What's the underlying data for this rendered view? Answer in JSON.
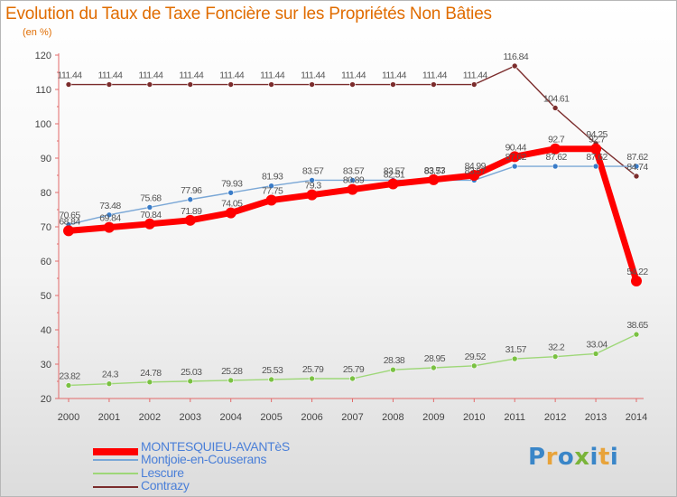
{
  "header": {
    "title": "Evolution du Taux de Taxe Foncière sur les Propriétés Non Bâties",
    "unit": "(en %)"
  },
  "logo": {
    "text": "Proxiti",
    "colors": [
      "#3a86c8",
      "#e8a33a",
      "#7ab43a"
    ]
  },
  "chart_data": {
    "type": "line",
    "title": "Evolution du Taux de Taxe Foncière sur les Propriétés Non Bâties",
    "ylabel": "(en %)",
    "xlabel": "",
    "ylim": [
      20,
      120
    ],
    "yticks": [
      20,
      30,
      40,
      50,
      60,
      70,
      80,
      90,
      100,
      110,
      120
    ],
    "x": [
      "2000",
      "2001",
      "2002",
      "2003",
      "2004",
      "2005",
      "2006",
      "2007",
      "2008",
      "2009",
      "2010",
      "2011",
      "2012",
      "2013",
      "2014"
    ],
    "grid": false,
    "legend_position": "bottom-left",
    "series": [
      {
        "name": "Contrazy",
        "color": "#7b2c2c",
        "marker": "#7b2c2c",
        "values": [
          111.44,
          111.44,
          111.44,
          111.44,
          111.44,
          111.44,
          111.44,
          111.44,
          111.44,
          111.44,
          111.44,
          116.84,
          104.61,
          94.25,
          84.74
        ],
        "labels": [
          "111.44",
          "111.44",
          "111.44",
          "111.44",
          "111.44",
          "111.44",
          "111.44",
          "111.44",
          "111.44",
          "111.44",
          "111.44",
          "116.84",
          "104.61",
          "94.25",
          "84.74"
        ]
      },
      {
        "name": "Lescure",
        "color": "#9ed778",
        "marker": "#7ac142",
        "values": [
          23.82,
          24.3,
          24.78,
          25.03,
          25.28,
          25.53,
          25.79,
          25.79,
          28.38,
          28.95,
          29.52,
          31.57,
          32.2,
          33.04,
          38.65
        ],
        "labels": [
          "23.82",
          "24.3",
          "24.78",
          "25.03",
          "25.28",
          "25.53",
          "25.79",
          "25.79",
          "28.38",
          "28.95",
          "29.52",
          "31.57",
          "32.2",
          "33.04",
          "38.65"
        ]
      },
      {
        "name": "Montjoie-en-Couserans",
        "color": "#7aa7d6",
        "marker": "#3a7cc8",
        "values": [
          70.65,
          73.48,
          75.68,
          77.96,
          79.93,
          81.93,
          83.57,
          83.57,
          83.57,
          83.57,
          83.57,
          87.62,
          87.62,
          87.62,
          87.62
        ],
        "labels": [
          "70.65",
          "73.48",
          "75.68",
          "77.96",
          "79.93",
          "81.93",
          "83.57",
          "83.57",
          "83.57",
          "83.57",
          "83.57",
          "87.62",
          "87.62",
          "87.62",
          "87.62"
        ]
      },
      {
        "name": "MONTESQUIEU-AVANTèS",
        "color": "#ff0000",
        "marker": "#ff0000",
        "values": [
          68.84,
          69.84,
          70.84,
          71.89,
          74.05,
          77.75,
          79.3,
          80.89,
          82.51,
          83.73,
          84.99,
          90.44,
          92.7,
          92.7,
          54.22
        ],
        "labels": [
          "68.84",
          "69.84",
          "70.84",
          "71.89",
          "74.05",
          "77.75",
          "79.3",
          "80.89",
          "82.51",
          "83.73",
          "84.99",
          "90.44",
          "92.7",
          "92.7",
          "54.22"
        ]
      }
    ],
    "legend": [
      "MONTESQUIEU-AVANTèS",
      "Montjoie-en-Couserans",
      "Lescure",
      "Contrazy"
    ]
  }
}
